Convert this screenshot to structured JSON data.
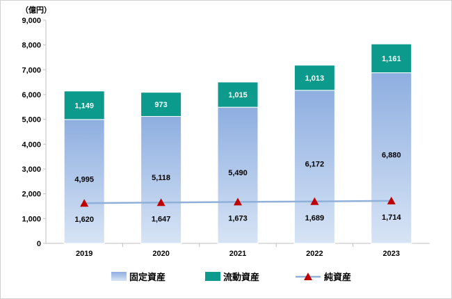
{
  "chart_data": {
    "type": "bar",
    "unit_label": "（億円）",
    "categories": [
      "2019",
      "2020",
      "2021",
      "2022",
      "2023"
    ],
    "ylim": [
      0,
      9000
    ],
    "yticks": [
      "0",
      "1,000",
      "2,000",
      "3,000",
      "4,000",
      "5,000",
      "6,000",
      "7,000",
      "8,000",
      "9,000"
    ],
    "stacked": true,
    "series": [
      {
        "name": "固定資産",
        "type": "bar",
        "values": [
          4995,
          5118,
          5490,
          6172,
          6880
        ],
        "labels": [
          "4,995",
          "5,118",
          "5,490",
          "6,172",
          "6,880"
        ],
        "color": "#9db9e3"
      },
      {
        "name": "流動資産",
        "type": "bar",
        "values": [
          1149,
          973,
          1015,
          1013,
          1161
        ],
        "labels": [
          "1,149",
          "973",
          "1,015",
          "1,013",
          "1,161"
        ],
        "color": "#0c9a8c"
      },
      {
        "name": "純資産",
        "type": "line",
        "values": [
          1620,
          1647,
          1673,
          1689,
          1714
        ],
        "labels": [
          "1,620",
          "1,647",
          "1,673",
          "1,689",
          "1,714"
        ],
        "color": "#8fb0d8",
        "marker_color": "#c00000"
      }
    ],
    "legend_position": "bottom",
    "grid": false
  }
}
